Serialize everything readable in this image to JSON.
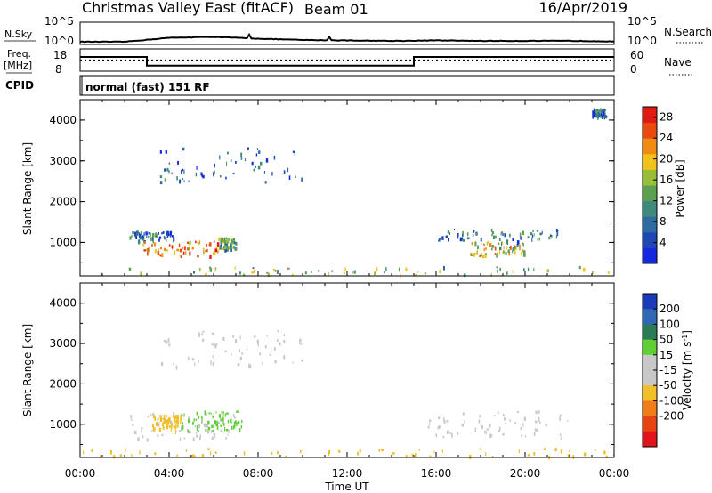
{
  "header": {
    "station": "Christmas Valley East (fitACF)",
    "beam": "Beam 01",
    "date": "16/Apr/2019"
  },
  "panels": {
    "nsky_label": "N.Sky",
    "nsearch_label": "N.Search",
    "freq_label_1": "Freq.",
    "freq_label_2": "[MHz]",
    "nave_label": "Nave",
    "cpid_label": "CPID",
    "cpid_text": "normal (fast) 151 RF",
    "nsky_ticks": [
      "10^5",
      "10^0"
    ],
    "nsearch_ticks": [
      "10^5",
      "10^0"
    ],
    "freq_ticks": [
      "18",
      "8"
    ],
    "nave_ticks": [
      "60",
      "0"
    ]
  },
  "colors": {
    "power": [
      "#1428e0",
      "#1e46b4",
      "#2f6aa0",
      "#3f8a7a",
      "#5aa050",
      "#98be37",
      "#f2c21a",
      "#f08c12",
      "#e84a10",
      "#e01c12"
    ],
    "velocity": [
      "#1b3bb8",
      "#2f68b5",
      "#2e7a55",
      "#5fcf33",
      "#c8c8c8",
      "#c8c8c8",
      "#f2bf28",
      "#f07d18",
      "#e84413",
      "#e0141a"
    ],
    "ground": "#c8c8c8"
  },
  "chart_data": [
    {
      "type": "line",
      "title": "N.Sky / N.Search",
      "x": [
        "00:00",
        "02:00",
        "04:00",
        "06:00",
        "08:00",
        "10:00",
        "12:00",
        "14:00",
        "16:00",
        "18:00",
        "20:00",
        "22:00",
        "24:00"
      ],
      "series": [
        {
          "name": "N.Sky",
          "values": [
            0.6,
            0.6,
            1.5,
            1.7,
            1.3,
            1.0,
            0.9,
            0.8,
            0.9,
            0.8,
            0.8,
            0.8,
            0.7
          ]
        },
        {
          "name": "N.Search",
          "values": [
            0.6,
            0.6,
            1.5,
            1.7,
            1.3,
            1.0,
            0.9,
            0.8,
            0.9,
            0.8,
            0.8,
            0.8,
            0.7
          ]
        }
      ],
      "ylim": [
        0,
        5
      ]
    },
    {
      "type": "line",
      "title": "Freq. / Nave",
      "x": [
        "00:00",
        "03:00",
        "03:01",
        "15:00",
        "15:01",
        "24:00"
      ],
      "series": [
        {
          "name": "Freq.",
          "values": [
            14.4,
            14.4,
            10.5,
            10.5,
            14.4,
            14.4
          ]
        },
        {
          "name": "Nave",
          "values": [
            30,
            30,
            30,
            30,
            30,
            30
          ]
        }
      ],
      "ylim": [
        8,
        18
      ]
    },
    {
      "type": "heatmap",
      "title": "Power",
      "ylabel": "Slant Range [km]",
      "xlabel": "Time UT",
      "x_ticks": [
        "00:00",
        "04:00",
        "08:00",
        "12:00",
        "16:00",
        "20:00",
        "00:00"
      ],
      "y_ticks": [
        "1000",
        "2000",
        "3000",
        "4000"
      ],
      "ylim": [
        180,
        4500
      ],
      "colorbar": {
        "label": "Power [dB]",
        "ticks": [
          "4",
          "8",
          "12",
          "16",
          "20",
          "24",
          "28"
        ],
        "range": [
          0,
          30
        ]
      },
      "regions": [
        {
          "t_start": 2.2,
          "t_end": 4.2,
          "r_start": 1000,
          "r_end": 1250,
          "value": 8
        },
        {
          "t_start": 2.8,
          "t_end": 6.2,
          "r_start": 650,
          "r_end": 1000,
          "value": 24
        },
        {
          "t_start": 6.2,
          "t_end": 7.0,
          "r_start": 800,
          "r_end": 1100,
          "value": 12
        },
        {
          "t_start": 17.5,
          "t_end": 20.0,
          "r_start": 650,
          "r_end": 1000,
          "value": 18
        },
        {
          "t_start": 16.0,
          "t_end": 21.5,
          "r_start": 1000,
          "r_end": 1300,
          "value": 8
        },
        {
          "t_start": 3.5,
          "t_end": 10.0,
          "r_start": 2400,
          "r_end": 3300,
          "value": 6
        },
        {
          "t_start": 0.0,
          "t_end": 24.0,
          "r_start": 180,
          "r_end": 380,
          "value": 14
        },
        {
          "t_start": 23.0,
          "t_end": 23.6,
          "r_start": 4050,
          "r_end": 4250,
          "value": 6
        }
      ]
    },
    {
      "type": "heatmap",
      "title": "Velocity",
      "ylabel": "Slant Range [km]",
      "xlabel": "Time UT",
      "x_ticks": [
        "00:00",
        "04:00",
        "08:00",
        "12:00",
        "16:00",
        "20:00",
        "00:00"
      ],
      "y_ticks": [
        "1000",
        "2000",
        "3000",
        "4000"
      ],
      "ylim": [
        180,
        4500
      ],
      "colorbar": {
        "label": "Velocity [m s^-1]",
        "ticks": [
          "200",
          "100",
          "50",
          "15",
          "-15",
          "-50",
          "-100",
          "-200"
        ]
      },
      "regions": [
        {
          "t_start": 2.2,
          "t_end": 7.0,
          "r_start": 600,
          "r_end": 1300,
          "value": 0
        },
        {
          "t_start": 4.5,
          "t_end": 7.3,
          "r_start": 800,
          "r_end": 1300,
          "value": 40
        },
        {
          "t_start": 3.2,
          "t_end": 4.5,
          "r_start": 800,
          "r_end": 1200,
          "value": -40
        },
        {
          "t_start": 15.5,
          "t_end": 22.0,
          "r_start": 650,
          "r_end": 1300,
          "value": 0
        },
        {
          "t_start": 0.0,
          "t_end": 24.0,
          "r_start": 180,
          "r_end": 380,
          "value": -30
        },
        {
          "t_start": 3.5,
          "t_end": 10.0,
          "r_start": 2400,
          "r_end": 3300,
          "value": 0
        }
      ]
    }
  ],
  "axis": {
    "xlabel": "Time UT",
    "x_ticks": [
      "00:00",
      "04:00",
      "08:00",
      "12:00",
      "16:00",
      "20:00",
      "00:00"
    ],
    "ylabel": "Slant Range [km]",
    "y_ticks": [
      "1000",
      "2000",
      "3000",
      "4000"
    ],
    "power_cb_label": "Power [dB]",
    "power_cb_ticks": [
      "4",
      "8",
      "12",
      "16",
      "20",
      "24",
      "28"
    ],
    "vel_cb_label_main": "Velocity [m s",
    "vel_cb_label_sup": "-1",
    "vel_cb_label_end": "]",
    "vel_cb_ticks": [
      "200",
      "100",
      "50",
      "15",
      "-15",
      "-50",
      "-100",
      "-200"
    ]
  }
}
